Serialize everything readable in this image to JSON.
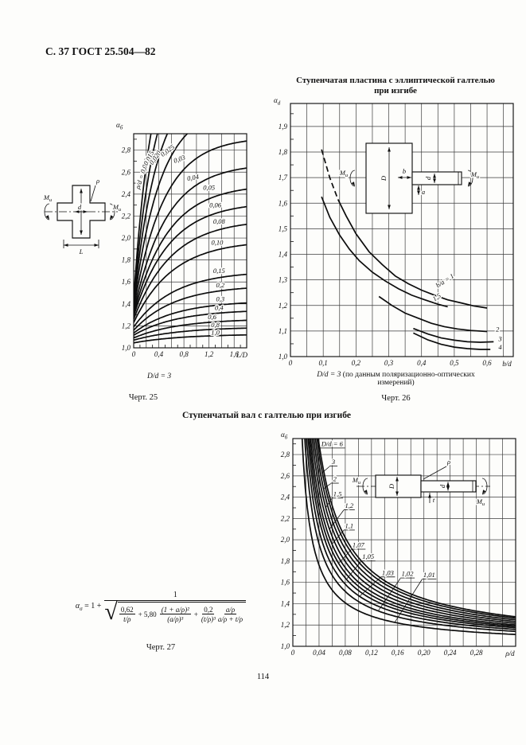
{
  "page": {
    "header": "С. 37 ГОСТ 25.504—82",
    "number": "114"
  },
  "figure25": {
    "caption_prefix": "D/d = 3",
    "caption_rest": "",
    "figure_label": "Черт. 25"
  },
  "figure26": {
    "title_line1": "Ступенчатая пластина с эллиптической галтелью",
    "title_line2": "при изгибе",
    "caption_prefix": "D/d = 3",
    "caption_rest": " (по данным поляризационно-оптических",
    "caption_line2": "измерений)",
    "figure_label": "Черт. 26"
  },
  "figure27": {
    "section_title": "Ступенчатый вал с галтелью при изгибе",
    "figure_label": "Черт. 27"
  },
  "formula": {
    "alpha": "α",
    "alpha_sub": "σ",
    "eq": "= 1 +",
    "num": "1",
    "t1n": "0,62",
    "t1d": "t/ρ",
    "op1": "+ 5,80",
    "t2n": "(1 + a/ρ)²",
    "t2d": "(a/ρ)³",
    "op2": "+",
    "t3n": "0,2",
    "t3d": "(t/ρ)³",
    "t4n": "a/ρ",
    "t4d": "a/ρ + t/ρ"
  },
  "chart_data": [
    {
      "id": "c25",
      "type": "line",
      "title": "Ступенчатая пластина с эллиптической галтелью при изгибе",
      "xlabel": "L/D",
      "ylabel_main": "α",
      "ylabel_sub": "б",
      "note": "D/d = 3",
      "legend_param": "ρ/d",
      "xrange": [
        0,
        1.8
      ],
      "yrange": [
        1.0,
        2.95
      ],
      "xgrid": 0.2,
      "ygrid": 0.2,
      "xminor": 0.1,
      "yminor": 0.1,
      "xticks": [
        {
          "v": 0,
          "t": "0"
        },
        {
          "v": 0.4,
          "t": "0,4"
        },
        {
          "v": 0.8,
          "t": "0,8"
        },
        {
          "v": 1.2,
          "t": "1,2"
        },
        {
          "v": 1.6,
          "t": "1,6"
        }
      ],
      "yticks": [
        {
          "v": 1.0,
          "t": "1,0"
        },
        {
          "v": 1.2,
          "t": "1,2"
        },
        {
          "v": 1.4,
          "t": "1,4"
        },
        {
          "v": 1.6,
          "t": "1,6"
        },
        {
          "v": 1.8,
          "t": "1,8"
        },
        {
          "v": 2.0,
          "t": "2,0"
        },
        {
          "v": 2.2,
          "t": "2,2"
        },
        {
          "v": 2.4,
          "t": "2,4"
        },
        {
          "v": 2.6,
          "t": "2,6"
        },
        {
          "v": 2.8,
          "t": "2,8"
        }
      ],
      "model": "sat",
      "curves": [
        {
          "label": "ρ/d = 0,010",
          "a0": 1.45,
          "ainf": 3.95,
          "tau": 0.3
        },
        {
          "label": "0,015",
          "a0": 1.42,
          "ainf": 3.7,
          "tau": 0.34
        },
        {
          "label": "0,020",
          "a0": 1.4,
          "ainf": 3.45,
          "tau": 0.38
        },
        {
          "label": "0,025",
          "a0": 1.38,
          "ainf": 3.2,
          "tau": 0.43
        },
        {
          "label": "0,03",
          "a0": 1.36,
          "ainf": 2.92,
          "tau": 0.48
        },
        {
          "label": "0,04",
          "a0": 1.33,
          "ainf": 2.68,
          "tau": 0.52
        },
        {
          "label": "0,05",
          "a0": 1.31,
          "ainf": 2.49,
          "tau": 0.55
        },
        {
          "label": "0,06",
          "a0": 1.29,
          "ainf": 2.33,
          "tau": 0.57
        },
        {
          "label": "0,08",
          "a0": 1.26,
          "ainf": 2.17,
          "tau": 0.6
        },
        {
          "label": "0,10",
          "a0": 1.23,
          "ainf": 1.98,
          "tau": 0.62
        },
        {
          "label": "0,15",
          "a0": 1.19,
          "ainf": 1.7,
          "tau": 0.64
        },
        {
          "label": "0,2",
          "a0": 1.16,
          "ainf": 1.57,
          "tau": 0.66
        },
        {
          "label": "0,3",
          "a0": 1.135,
          "ainf": 1.43,
          "tau": 0.68
        },
        {
          "label": "0,4",
          "a0": 1.115,
          "ainf": 1.35,
          "tau": 0.7
        },
        {
          "label": "0,6",
          "a0": 1.09,
          "ainf": 1.265,
          "tau": 0.72
        },
        {
          "label": "0,8",
          "a0": 1.07,
          "ainf": 1.19,
          "tau": 0.74
        },
        {
          "label": "1,0",
          "a0": 1.045,
          "ainf": 1.125,
          "tau": 0.76
        }
      ],
      "labels": [
        {
          "t": "ρ/d = 0,010",
          "x": 0.17,
          "y": 2.58,
          "r": -72
        },
        {
          "t": "0,015",
          "x": 0.27,
          "y": 2.72,
          "r": -63
        },
        {
          "t": "0,020",
          "x": 0.37,
          "y": 2.72,
          "r": -55
        },
        {
          "t": "0,025",
          "x": 0.56,
          "y": 2.78,
          "r": -36
        },
        {
          "t": "0,03",
          "x": 0.74,
          "y": 2.7,
          "r": -20
        },
        {
          "t": "0,04",
          "x": 0.95,
          "y": 2.53,
          "r": -10
        },
        {
          "t": "0,05",
          "x": 1.2,
          "y": 2.44
        },
        {
          "t": "0,06",
          "x": 1.3,
          "y": 2.28
        },
        {
          "t": "0,08",
          "x": 1.36,
          "y": 2.13
        },
        {
          "t": "0,10",
          "x": 1.33,
          "y": 1.94
        },
        {
          "t": "0,15",
          "x": 1.36,
          "y": 1.68
        },
        {
          "t": "0,2",
          "x": 1.38,
          "y": 1.55
        },
        {
          "t": "0,3",
          "x": 1.38,
          "y": 1.425
        },
        {
          "t": "0,4",
          "x": 1.36,
          "y": 1.345
        },
        {
          "t": "0,6",
          "x": 1.25,
          "y": 1.26
        },
        {
          "t": "0,8",
          "x": 1.3,
          "y": 1.19
        },
        {
          "t": "1,0",
          "x": 1.3,
          "y": 1.12
        }
      ],
      "inset": "cross",
      "inset_labels": {
        "rho": "ρ",
        "d": "d",
        "L": "L",
        "m": "M",
        "msub": "и"
      }
    },
    {
      "id": "c26",
      "type": "line",
      "title": "Ступенчатая пластина с эллиптической галтелью при изгибе (поляризационно-оптические данные)",
      "xlabel": "b/d",
      "ylabel_main": "α",
      "ylabel_sub": "d",
      "note": "D/d = 3",
      "legend_param": "b/a",
      "xrange": [
        0,
        0.68
      ],
      "yrange": [
        1.0,
        1.99
      ],
      "xgrid": 0.05,
      "ygrid": 0.1,
      "xminor": 0,
      "yminor": 0.05,
      "xticks": [
        {
          "v": 0,
          "t": "0"
        },
        {
          "v": 0.1,
          "t": "0,1"
        },
        {
          "v": 0.2,
          "t": "0,2"
        },
        {
          "v": 0.3,
          "t": "0,3"
        },
        {
          "v": 0.4,
          "t": "0,4"
        },
        {
          "v": 0.5,
          "t": "0,5"
        },
        {
          "v": 0.6,
          "t": "0,6"
        }
      ],
      "yticks": [
        {
          "v": 1.0,
          "t": "1,0"
        },
        {
          "v": 1.1,
          "t": "1,1"
        },
        {
          "v": 1.2,
          "t": "1,2"
        },
        {
          "v": 1.3,
          "t": "1,3"
        },
        {
          "v": 1.4,
          "t": "1,4"
        },
        {
          "v": 1.5,
          "t": "1,5"
        },
        {
          "v": 1.6,
          "t": "1,6"
        },
        {
          "v": 1.7,
          "t": "1,7"
        },
        {
          "v": 1.8,
          "t": "1,8"
        },
        {
          "v": 1.9,
          "t": "1,9"
        }
      ],
      "model": "pts",
      "curves": [
        {
          "label": "b/a = 1",
          "dashn": 2,
          "points": [
            [
              0.095,
              1.81
            ],
            [
              0.12,
              1.7
            ],
            [
              0.145,
              1.615
            ],
            [
              0.17,
              1.55
            ],
            [
              0.2,
              1.48
            ],
            [
              0.24,
              1.41
            ],
            [
              0.28,
              1.36
            ],
            [
              0.32,
              1.315
            ],
            [
              0.36,
              1.285
            ],
            [
              0.4,
              1.26
            ],
            [
              0.44,
              1.24
            ],
            [
              0.48,
              1.222
            ],
            [
              0.52,
              1.21
            ],
            [
              0.56,
              1.198
            ],
            [
              0.6,
              1.19
            ]
          ]
        },
        {
          "label": "1,5",
          "points": [
            [
              0.095,
              1.625
            ],
            [
              0.12,
              1.545
            ],
            [
              0.15,
              1.475
            ],
            [
              0.18,
              1.42
            ],
            [
              0.21,
              1.375
            ],
            [
              0.25,
              1.33
            ],
            [
              0.29,
              1.295
            ],
            [
              0.33,
              1.265
            ],
            [
              0.37,
              1.24
            ],
            [
              0.41,
              1.222
            ],
            [
              0.45,
              1.205
            ],
            [
              0.48,
              1.195
            ]
          ]
        },
        {
          "label": "2",
          "points": [
            [
              0.27,
              1.235
            ],
            [
              0.31,
              1.2
            ],
            [
              0.35,
              1.17
            ],
            [
              0.39,
              1.15
            ],
            [
              0.43,
              1.13
            ],
            [
              0.47,
              1.117
            ],
            [
              0.51,
              1.108
            ],
            [
              0.55,
              1.102
            ],
            [
              0.6,
              1.098
            ]
          ]
        },
        {
          "label": "3",
          "points": [
            [
              0.375,
              1.11
            ],
            [
              0.42,
              1.088
            ],
            [
              0.46,
              1.073
            ],
            [
              0.5,
              1.064
            ],
            [
              0.54,
              1.058
            ],
            [
              0.58,
              1.056
            ],
            [
              0.62,
              1.058
            ]
          ]
        },
        {
          "label": "4",
          "points": [
            [
              0.375,
              1.092
            ],
            [
              0.42,
              1.065
            ],
            [
              0.46,
              1.048
            ],
            [
              0.5,
              1.037
            ],
            [
              0.54,
              1.031
            ],
            [
              0.58,
              1.028
            ],
            [
              0.61,
              1.028
            ]
          ]
        }
      ],
      "labels": [
        {
          "t": "b/a = 1",
          "x": 0.475,
          "y": 1.29,
          "r": -33
        },
        {
          "t": "1,5",
          "x": 0.45,
          "y": 1.225,
          "r": -33
        },
        {
          "t": "2",
          "x": 0.632,
          "y": 1.098
        },
        {
          "t": "3",
          "x": 0.64,
          "y": 1.06
        },
        {
          "t": "4",
          "x": 0.64,
          "y": 1.028
        }
      ],
      "inset": "plate",
      "inset_labels": {
        "D": "D",
        "d": "d",
        "b": "b",
        "a": "a",
        "m": "M",
        "msub": "и"
      }
    },
    {
      "id": "c27",
      "type": "line",
      "title": "Ступенчатый вал с галтелью при изгибе",
      "xlabel": "ρ/d",
      "ylabel_main": "α",
      "ylabel_sub": "б",
      "legend_param": "D/d",
      "xrange": [
        0,
        0.34
      ],
      "yrange": [
        1.0,
        2.95
      ],
      "xgrid": 0.02,
      "ygrid": 0.2,
      "xminor": 0,
      "yminor": 0.1,
      "xticks": [
        {
          "v": 0,
          "t": "0"
        },
        {
          "v": 0.04,
          "t": "0,04"
        },
        {
          "v": 0.08,
          "t": "0,08"
        },
        {
          "v": 0.12,
          "t": "0,12"
        },
        {
          "v": 0.16,
          "t": "0,16"
        },
        {
          "v": 0.2,
          "t": "0,20"
        },
        {
          "v": 0.24,
          "t": "0,24"
        },
        {
          "v": 0.28,
          "t": "0,28"
        }
      ],
      "yticks": [
        {
          "v": 1.0,
          "t": "1,0"
        },
        {
          "v": 1.2,
          "t": "1,2"
        },
        {
          "v": 1.4,
          "t": "1,4"
        },
        {
          "v": 1.6,
          "t": "1,6"
        },
        {
          "v": 1.8,
          "t": "1,8"
        },
        {
          "v": 2.0,
          "t": "2,0"
        },
        {
          "v": 2.2,
          "t": "2,2"
        },
        {
          "v": 2.4,
          "t": "2,4"
        },
        {
          "v": 2.6,
          "t": "2,6"
        },
        {
          "v": 2.8,
          "t": "2,8"
        }
      ],
      "model": "pow",
      "curves": [
        {
          "label": "D/d = 6",
          "C": 0.105,
          "exp": -0.9
        },
        {
          "label": "3",
          "C": 0.1,
          "exp": -0.9
        },
        {
          "label": "2",
          "C": 0.094,
          "exp": -0.9
        },
        {
          "label": "1,5",
          "C": 0.088,
          "exp": -0.9
        },
        {
          "label": "1,2",
          "C": 0.082,
          "exp": -0.9
        },
        {
          "label": "1,1",
          "C": 0.076,
          "exp": -0.9
        },
        {
          "label": "1,07",
          "C": 0.071,
          "exp": -0.9
        },
        {
          "label": "1,05",
          "C": 0.066,
          "exp": -0.9
        },
        {
          "label": "1,03",
          "C": 0.06,
          "exp": -0.9
        },
        {
          "label": "1,02",
          "C": 0.053,
          "exp": -0.9
        },
        {
          "label": "1,01",
          "C": 0.042,
          "exp": -0.9
        }
      ],
      "labels": [
        {
          "t": "D/d = 6",
          "x": 0.06,
          "y": 2.88,
          "ul": 16,
          "ldr": [
            0.043,
            2.78
          ]
        },
        {
          "t": "3",
          "x": 0.062,
          "y": 2.71,
          "ul": 5,
          "ldr": [
            0.045,
            2.63
          ]
        },
        {
          "t": "2",
          "x": 0.064,
          "y": 2.55,
          "ul": 5,
          "ldr": [
            0.047,
            2.48
          ]
        },
        {
          "t": "1,5",
          "x": 0.068,
          "y": 2.41,
          "ul": 7,
          "ldr": [
            0.05,
            2.3
          ]
        },
        {
          "t": "1,2",
          "x": 0.086,
          "y": 2.3,
          "ul": 7,
          "ldr": [
            0.056,
            2.1
          ]
        },
        {
          "t": "1,1",
          "x": 0.086,
          "y": 2.11,
          "ul": 7,
          "ldr": [
            0.06,
            1.96
          ]
        },
        {
          "t": "1,07",
          "x": 0.1,
          "y": 1.93,
          "ul": 9,
          "ldr": [
            0.07,
            1.78
          ]
        },
        {
          "t": "1,05",
          "x": 0.115,
          "y": 1.82,
          "ul": 9,
          "ldr": [
            0.082,
            1.63
          ]
        },
        {
          "t": "1,03",
          "x": 0.145,
          "y": 1.67,
          "ul": 9,
          "ldr": [
            0.102,
            1.47
          ]
        },
        {
          "t": "1,02",
          "x": 0.175,
          "y": 1.66,
          "ul": 9,
          "ldr": [
            0.13,
            1.33
          ]
        },
        {
          "t": "1,01",
          "x": 0.208,
          "y": 1.65,
          "ul": 9,
          "ldr": [
            0.155,
            1.22
          ]
        }
      ],
      "inset": "shaft",
      "inset_labels": {
        "rho": "ρ",
        "D": "D",
        "d": "d",
        "t": "t",
        "m": "M",
        "msub": "и"
      }
    }
  ]
}
